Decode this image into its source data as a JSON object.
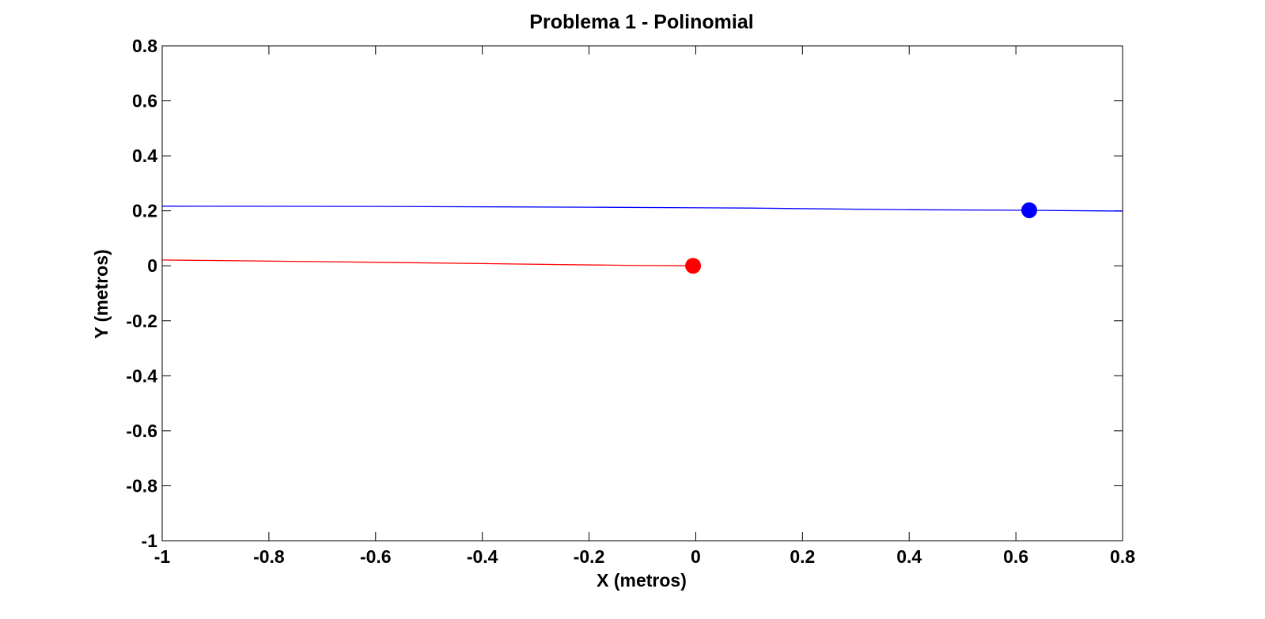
{
  "chart_data": {
    "type": "line",
    "title": "Problema 1 - Polinomial",
    "xlabel": "X (metros)",
    "ylabel": "Y (metros)",
    "xlim": [
      -1,
      0.8
    ],
    "ylim": [
      -1,
      0.8
    ],
    "xticks": [
      -1,
      -0.8,
      -0.6,
      -0.4,
      -0.2,
      0,
      0.2,
      0.4,
      0.6,
      0.8
    ],
    "yticks": [
      -1,
      -0.8,
      -0.6,
      -0.4,
      -0.2,
      0,
      0.2,
      0.4,
      0.6,
      0.8
    ],
    "xtick_labels": [
      "-1",
      "-0.8",
      "-0.6",
      "-0.4",
      "-0.2",
      "0",
      "0.2",
      "0.4",
      "0.6",
      "0.8"
    ],
    "ytick_labels": [
      "-1",
      "-0.8",
      "-0.6",
      "-0.4",
      "-0.2",
      "0",
      "0.2",
      "0.4",
      "0.6",
      "0.8"
    ],
    "grid": false,
    "series": [
      {
        "color": "#0000ff",
        "x": [
          -1,
          -0.6,
          -0.2,
          0.1,
          0.4,
          0.62,
          0.8
        ],
        "y": [
          0.217,
          0.216,
          0.213,
          0.21,
          0.204,
          0.202,
          0.199
        ],
        "marker": {
          "x": 0.625,
          "y": 0.202
        }
      },
      {
        "color": "#ff0000",
        "x": [
          -1,
          -0.7,
          -0.4,
          -0.1,
          -0.005
        ],
        "y": [
          0.021,
          0.015,
          0.008,
          0.001,
          0.0
        ],
        "marker": {
          "x": -0.005,
          "y": 0.0
        }
      }
    ]
  }
}
